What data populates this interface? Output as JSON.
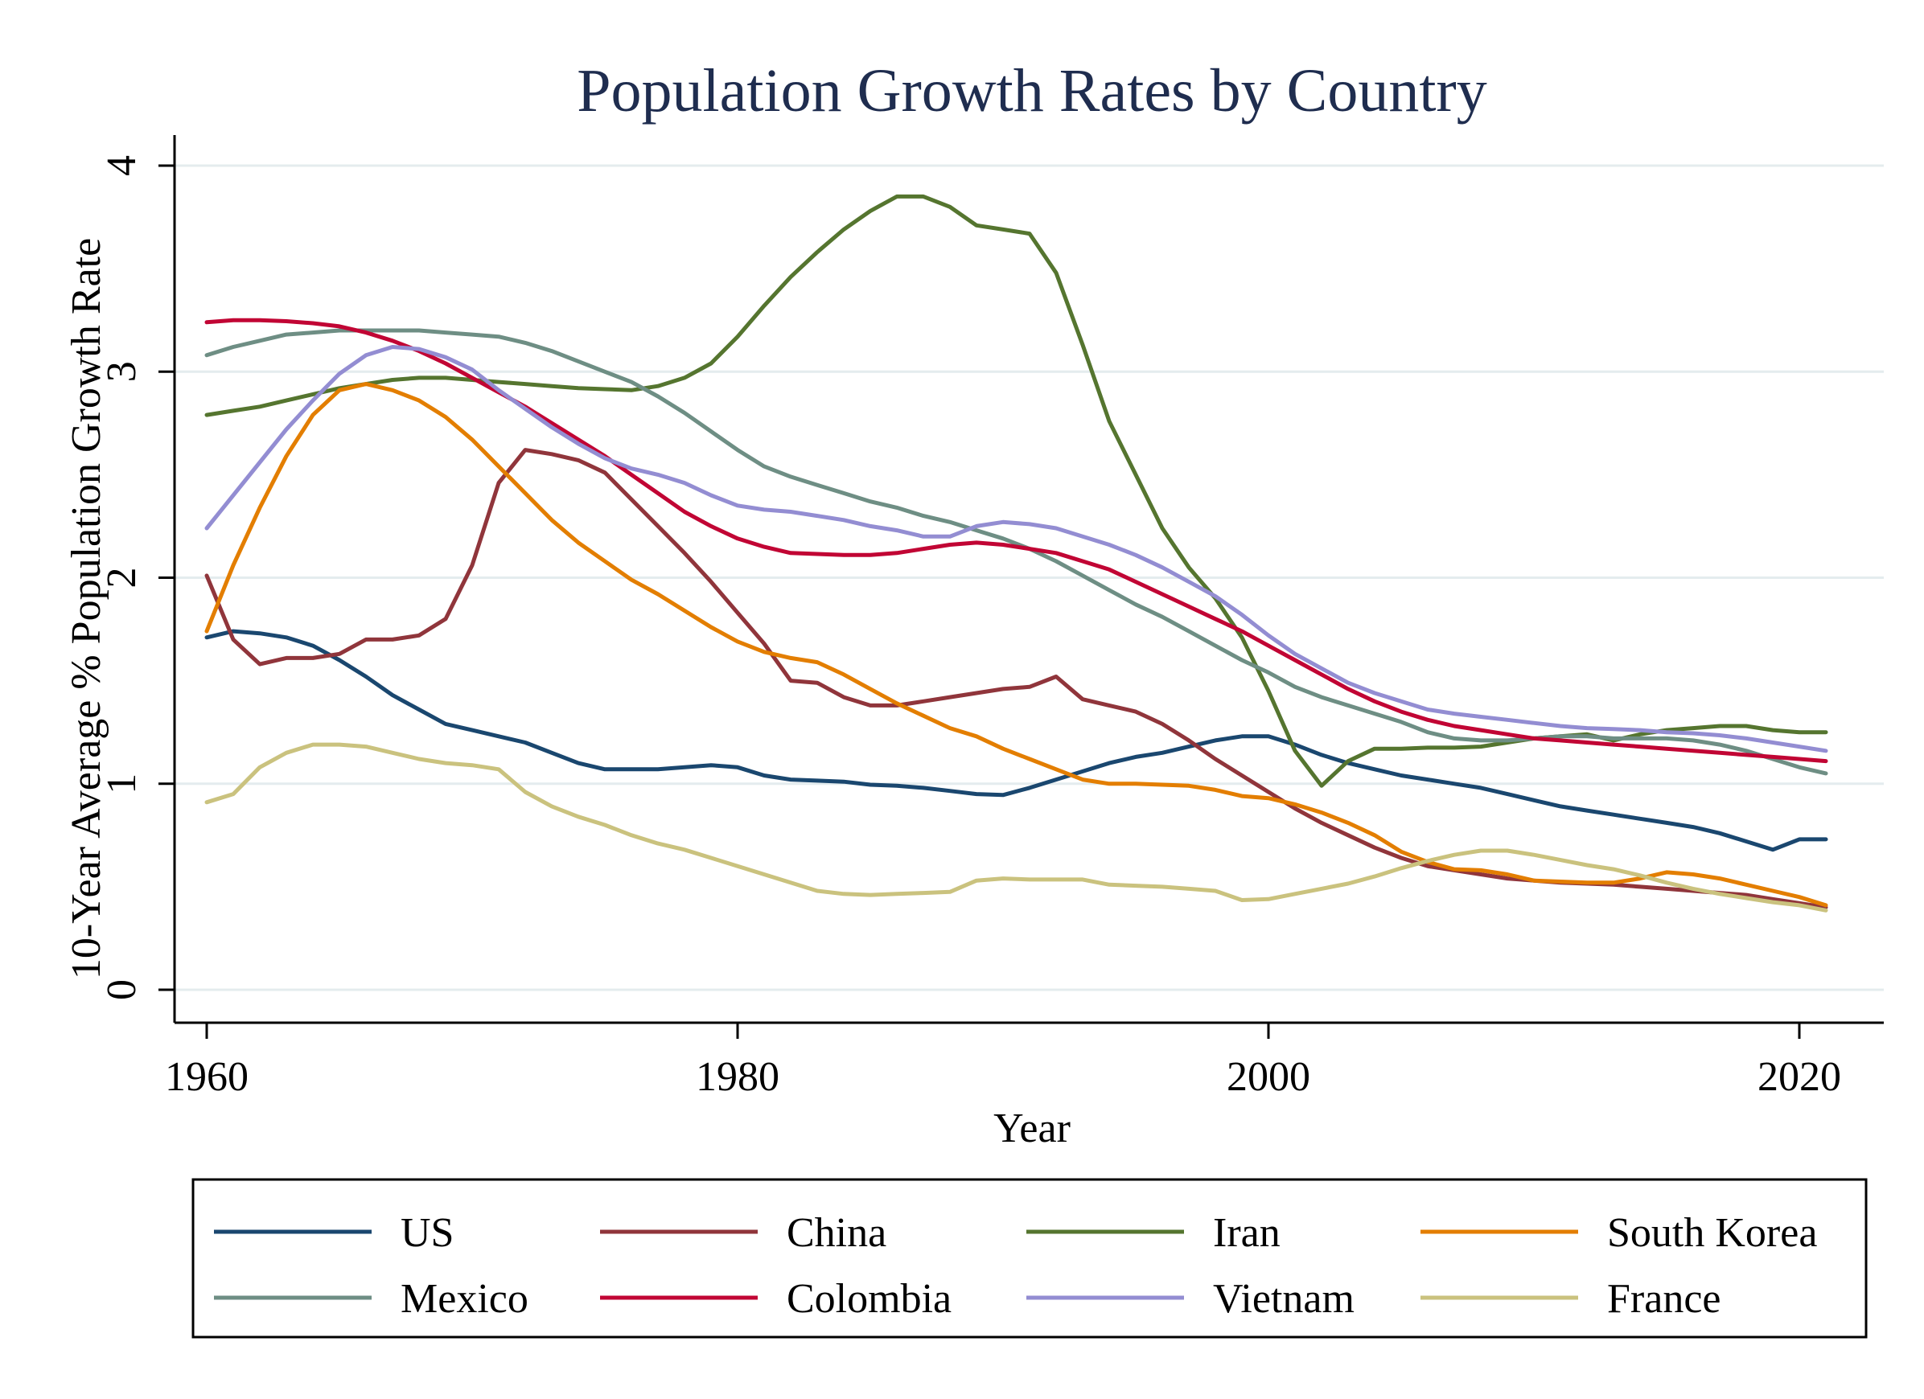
{
  "chart_data": {
    "type": "line",
    "title": "Population Growth Rates by Country",
    "xlabel": "Year",
    "ylabel": "10-Year Average % Population Growth Rate",
    "xlim": [
      1960,
      2021
    ],
    "ylim": [
      0,
      4
    ],
    "xticks": [
      1960,
      1980,
      2000,
      2020
    ],
    "yticks": [
      0,
      1,
      2,
      3,
      4
    ],
    "grid": true,
    "legend": {
      "position": "bottom",
      "columns": 4,
      "boxed": true
    },
    "years": [
      1960,
      1961,
      1962,
      1963,
      1964,
      1965,
      1966,
      1967,
      1968,
      1969,
      1970,
      1971,
      1972,
      1973,
      1974,
      1975,
      1976,
      1977,
      1978,
      1979,
      1980,
      1981,
      1982,
      1983,
      1984,
      1985,
      1986,
      1987,
      1988,
      1989,
      1990,
      1991,
      1992,
      1993,
      1994,
      1995,
      1996,
      1997,
      1998,
      1999,
      2000,
      2001,
      2002,
      2003,
      2004,
      2005,
      2006,
      2007,
      2008,
      2009,
      2010,
      2011,
      2012,
      2013,
      2014,
      2015,
      2016,
      2017,
      2018,
      2019,
      2020,
      2021
    ],
    "series": [
      {
        "name": "US",
        "color": "#1a476f",
        "values": [
          1.71,
          1.74,
          1.73,
          1.71,
          1.67,
          1.6,
          1.52,
          1.43,
          1.36,
          1.29,
          1.26,
          1.23,
          1.2,
          1.15,
          1.1,
          1.07,
          1.07,
          1.07,
          1.08,
          1.09,
          1.08,
          1.04,
          1.02,
          1.015,
          1.01,
          0.995,
          0.99,
          0.98,
          0.965,
          0.95,
          0.945,
          0.98,
          1.02,
          1.06,
          1.1,
          1.13,
          1.15,
          1.18,
          1.21,
          1.23,
          1.23,
          1.19,
          1.14,
          1.1,
          1.07,
          1.04,
          1.02,
          1.0,
          0.98,
          0.95,
          0.92,
          0.89,
          0.87,
          0.85,
          0.83,
          0.81,
          0.79,
          0.76,
          0.72,
          0.68,
          0.73,
          0.73
        ]
      },
      {
        "name": "China",
        "color": "#90353b",
        "values": [
          2.01,
          1.7,
          1.58,
          1.61,
          1.61,
          1.63,
          1.7,
          1.7,
          1.72,
          1.8,
          2.06,
          2.46,
          2.62,
          2.6,
          2.57,
          2.51,
          2.38,
          2.25,
          2.12,
          1.98,
          1.83,
          1.68,
          1.5,
          1.49,
          1.42,
          1.38,
          1.38,
          1.4,
          1.42,
          1.44,
          1.46,
          1.47,
          1.52,
          1.41,
          1.38,
          1.35,
          1.29,
          1.21,
          1.12,
          1.04,
          0.96,
          0.88,
          0.81,
          0.75,
          0.69,
          0.64,
          0.6,
          0.58,
          0.56,
          0.54,
          0.53,
          0.52,
          0.515,
          0.51,
          0.5,
          0.49,
          0.48,
          0.47,
          0.46,
          0.44,
          0.42,
          0.4
        ]
      },
      {
        "name": "Iran",
        "color": "#55752f",
        "values": [
          2.79,
          2.81,
          2.83,
          2.86,
          2.89,
          2.92,
          2.94,
          2.96,
          2.97,
          2.97,
          2.96,
          2.95,
          2.94,
          2.93,
          2.92,
          2.915,
          2.91,
          2.93,
          2.97,
          3.04,
          3.17,
          3.32,
          3.46,
          3.58,
          3.69,
          3.78,
          3.85,
          3.85,
          3.8,
          3.71,
          3.69,
          3.67,
          3.48,
          3.13,
          2.76,
          2.5,
          2.24,
          2.05,
          1.9,
          1.71,
          1.45,
          1.16,
          0.99,
          1.11,
          1.17,
          1.17,
          1.175,
          1.175,
          1.18,
          1.2,
          1.22,
          1.23,
          1.24,
          1.21,
          1.24,
          1.26,
          1.27,
          1.28,
          1.28,
          1.26,
          1.25,
          1.25
        ]
      },
      {
        "name": "South Korea",
        "color": "#e37e00",
        "values": [
          1.74,
          2.06,
          2.34,
          2.59,
          2.79,
          2.91,
          2.94,
          2.91,
          2.86,
          2.78,
          2.67,
          2.54,
          2.41,
          2.28,
          2.17,
          2.08,
          1.99,
          1.92,
          1.84,
          1.76,
          1.69,
          1.64,
          1.61,
          1.59,
          1.53,
          1.46,
          1.39,
          1.33,
          1.27,
          1.23,
          1.17,
          1.12,
          1.07,
          1.02,
          1.0,
          1.0,
          0.995,
          0.99,
          0.97,
          0.94,
          0.93,
          0.9,
          0.86,
          0.81,
          0.75,
          0.67,
          0.62,
          0.585,
          0.58,
          0.56,
          0.53,
          0.525,
          0.52,
          0.52,
          0.54,
          0.57,
          0.56,
          0.54,
          0.51,
          0.48,
          0.45,
          0.41
        ]
      },
      {
        "name": "Mexico",
        "color": "#6e8e84",
        "values": [
          3.08,
          3.12,
          3.15,
          3.18,
          3.19,
          3.2,
          3.2,
          3.2,
          3.2,
          3.19,
          3.18,
          3.17,
          3.14,
          3.1,
          3.05,
          3.0,
          2.95,
          2.88,
          2.8,
          2.71,
          2.62,
          2.54,
          2.49,
          2.45,
          2.41,
          2.37,
          2.34,
          2.3,
          2.27,
          2.23,
          2.19,
          2.14,
          2.08,
          2.01,
          1.94,
          1.87,
          1.81,
          1.74,
          1.67,
          1.6,
          1.54,
          1.47,
          1.42,
          1.38,
          1.34,
          1.3,
          1.25,
          1.22,
          1.21,
          1.21,
          1.22,
          1.23,
          1.23,
          1.22,
          1.22,
          1.22,
          1.21,
          1.19,
          1.16,
          1.12,
          1.08,
          1.05
        ]
      },
      {
        "name": "Colombia",
        "color": "#c10534",
        "values": [
          3.24,
          3.25,
          3.25,
          3.245,
          3.235,
          3.22,
          3.19,
          3.15,
          3.1,
          3.04,
          2.97,
          2.9,
          2.83,
          2.75,
          2.67,
          2.59,
          2.5,
          2.41,
          2.32,
          2.25,
          2.19,
          2.15,
          2.12,
          2.115,
          2.11,
          2.11,
          2.12,
          2.14,
          2.16,
          2.17,
          2.16,
          2.14,
          2.12,
          2.08,
          2.04,
          1.98,
          1.92,
          1.86,
          1.8,
          1.74,
          1.67,
          1.6,
          1.53,
          1.46,
          1.4,
          1.35,
          1.31,
          1.28,
          1.26,
          1.24,
          1.22,
          1.21,
          1.2,
          1.19,
          1.18,
          1.17,
          1.16,
          1.15,
          1.14,
          1.13,
          1.12,
          1.11
        ]
      },
      {
        "name": "Vietnam",
        "color": "#938dd2",
        "values": [
          2.24,
          2.4,
          2.56,
          2.72,
          2.86,
          2.99,
          3.08,
          3.12,
          3.11,
          3.07,
          3.01,
          2.91,
          2.82,
          2.73,
          2.65,
          2.58,
          2.53,
          2.5,
          2.46,
          2.4,
          2.35,
          2.33,
          2.32,
          2.3,
          2.28,
          2.25,
          2.23,
          2.2,
          2.2,
          2.25,
          2.27,
          2.26,
          2.24,
          2.2,
          2.16,
          2.11,
          2.05,
          1.98,
          1.91,
          1.82,
          1.72,
          1.63,
          1.56,
          1.49,
          1.44,
          1.4,
          1.36,
          1.34,
          1.325,
          1.31,
          1.295,
          1.28,
          1.27,
          1.265,
          1.26,
          1.25,
          1.245,
          1.235,
          1.22,
          1.2,
          1.18,
          1.16
        ]
      },
      {
        "name": "France",
        "color": "#cac27e",
        "values": [
          0.91,
          0.95,
          1.08,
          1.15,
          1.19,
          1.19,
          1.18,
          1.15,
          1.12,
          1.1,
          1.09,
          1.07,
          0.96,
          0.89,
          0.84,
          0.8,
          0.75,
          0.71,
          0.68,
          0.64,
          0.6,
          0.56,
          0.52,
          0.48,
          0.465,
          0.46,
          0.465,
          0.47,
          0.475,
          0.53,
          0.54,
          0.535,
          0.535,
          0.535,
          0.51,
          0.505,
          0.5,
          0.49,
          0.48,
          0.435,
          0.44,
          0.465,
          0.49,
          0.515,
          0.55,
          0.59,
          0.625,
          0.655,
          0.675,
          0.675,
          0.655,
          0.63,
          0.605,
          0.585,
          0.555,
          0.52,
          0.49,
          0.465,
          0.445,
          0.425,
          0.41,
          0.385
        ]
      }
    ]
  }
}
